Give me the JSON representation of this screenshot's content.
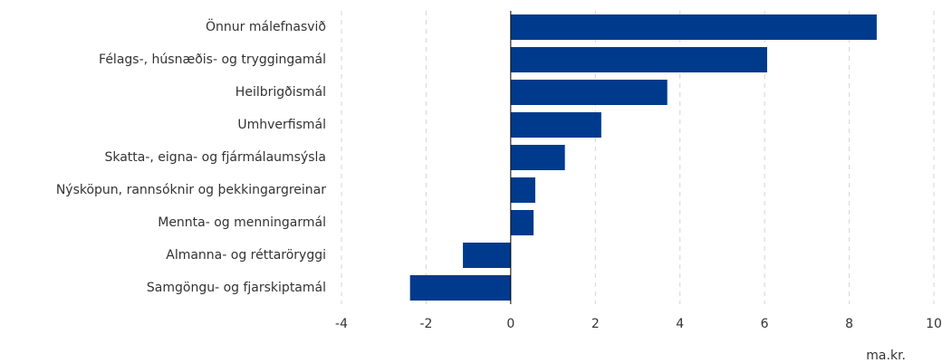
{
  "chart_data": {
    "type": "bar",
    "orientation": "horizontal",
    "categories": [
      "Önnur málefnasvið",
      "Félags-, húsnæðis- og tryggingamál",
      "Heilbrigðismál",
      "Umhverfismál",
      "Skatta-, eigna- og fjármálaumsýsla",
      "Nýsköpun, rannsóknir og þekkingargreinar",
      "Mennta- og menningarmál",
      "Almanna- og réttaröryggi",
      "Samgöngu- og fjarskiptamál"
    ],
    "values": [
      8.65,
      6.06,
      3.7,
      2.14,
      1.28,
      0.58,
      0.54,
      -1.13,
      -2.38
    ],
    "color": "#003a8c",
    "xlim": [
      -4,
      10
    ],
    "xticks": [
      -4,
      -2,
      0,
      2,
      4,
      6,
      8,
      10
    ],
    "x_label": "ma.kr.",
    "grid": true
  }
}
